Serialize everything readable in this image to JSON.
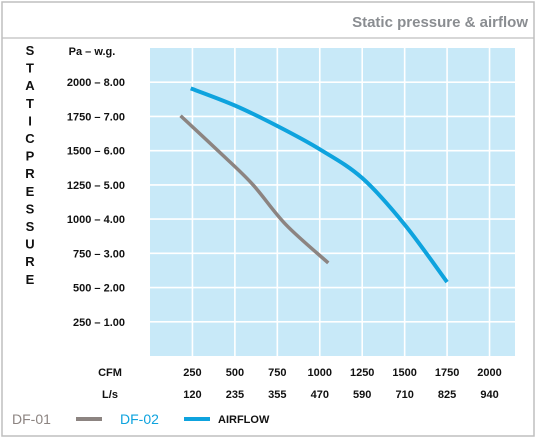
{
  "chart_data": {
    "type": "line",
    "title": "Static pressure & airflow",
    "ylabel": "STATIC PRESSURE",
    "y_unit_label": "Pa – w.g.",
    "x_row_labels": [
      "CFM",
      "L/s"
    ],
    "ylim": [
      0,
      2250
    ],
    "xlim": [
      0,
      2150
    ],
    "grid": true,
    "y_ticks": [
      {
        "value": 250,
        "label": "250 – 1.00"
      },
      {
        "value": 500,
        "label": "500 – 2.00"
      },
      {
        "value": 750,
        "label": "750 – 3.00"
      },
      {
        "value": 1000,
        "label": "1000 – 4.00"
      },
      {
        "value": 1250,
        "label": "1250 – 5.00"
      },
      {
        "value": 1500,
        "label": "1500 – 6.00"
      },
      {
        "value": 1750,
        "label": "1750 – 7.00"
      },
      {
        "value": 2000,
        "label": "2000 – 8.00"
      }
    ],
    "x_ticks": [
      {
        "value": 250,
        "cfm": "250",
        "ls": "120"
      },
      {
        "value": 500,
        "cfm": "500",
        "ls": "235"
      },
      {
        "value": 750,
        "cfm": "750",
        "ls": "355"
      },
      {
        "value": 1000,
        "cfm": "1000",
        "ls": "470"
      },
      {
        "value": 1250,
        "cfm": "1250",
        "ls": "590"
      },
      {
        "value": 1500,
        "cfm": "1500",
        "ls": "710"
      },
      {
        "value": 1750,
        "cfm": "1750",
        "ls": "825"
      },
      {
        "value": 2000,
        "cfm": "2000",
        "ls": "940"
      }
    ],
    "series": [
      {
        "name": "DF-01",
        "color": "#8c8481",
        "x": [
          180,
          400,
          600,
          800,
          1050
        ],
        "y": [
          1755,
          1500,
          1260,
          960,
          680
        ]
      },
      {
        "name": "DF-02",
        "color": "#0ea3de",
        "x": [
          240,
          500,
          750,
          1000,
          1250,
          1500,
          1750
        ],
        "y": [
          1955,
          1830,
          1680,
          1510,
          1300,
          960,
          540
        ]
      }
    ],
    "legend": {
      "position": "bottom-left",
      "suffix": "AIRFLOW"
    }
  },
  "colors": {
    "plot_bg": "#c8e9f8",
    "grid": "#ffffff",
    "frame": "#bfbfbf",
    "title_text": "#8a8d91"
  }
}
